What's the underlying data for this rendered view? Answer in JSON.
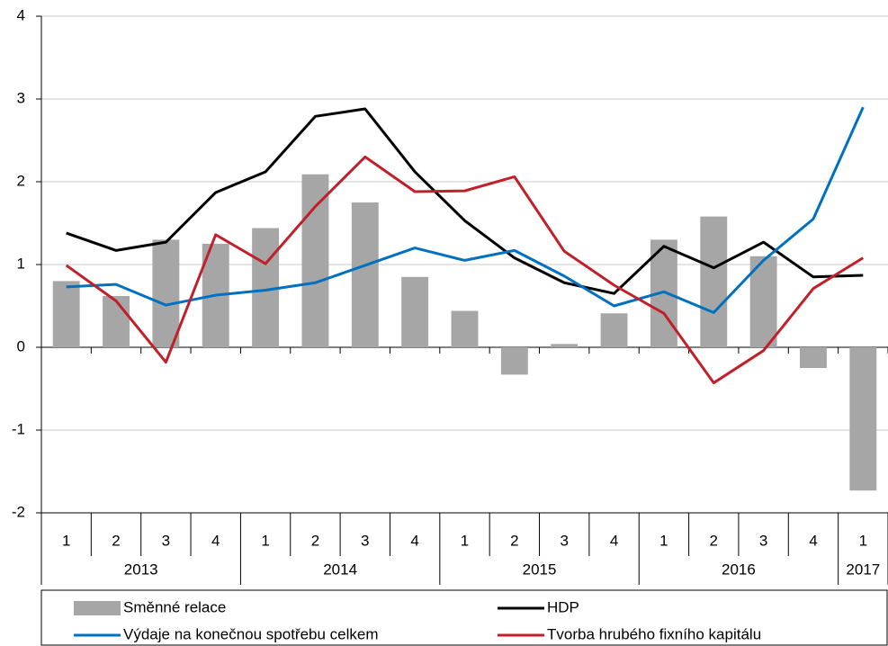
{
  "chart_data": {
    "type": "bar",
    "categories": [
      "1",
      "2",
      "3",
      "4",
      "1",
      "2",
      "3",
      "4",
      "1",
      "2",
      "3",
      "4",
      "1",
      "2",
      "3",
      "4",
      "1"
    ],
    "groups": [
      "2013",
      null,
      null,
      null,
      "2014",
      null,
      null,
      null,
      "2015",
      null,
      null,
      null,
      "2016",
      null,
      null,
      null,
      "2017"
    ],
    "series": [
      {
        "name": "Směnné relace",
        "type": "bar",
        "color": "#a6a6a6",
        "values": [
          0.8,
          0.62,
          1.3,
          1.25,
          1.44,
          2.09,
          1.75,
          0.85,
          0.44,
          -0.33,
          0.04,
          0.41,
          1.3,
          1.58,
          1.1,
          -0.25,
          -1.73
        ]
      },
      {
        "name": "HDP",
        "type": "line",
        "color": "#000000",
        "values": [
          1.38,
          1.17,
          1.27,
          1.87,
          2.12,
          2.79,
          2.88,
          2.12,
          1.53,
          1.08,
          0.78,
          0.65,
          1.22,
          0.96,
          1.27,
          0.85,
          0.87
        ]
      },
      {
        "name": "Výdaje na konečnou spotřebu celkem",
        "type": "line",
        "color": "#0070c0",
        "values": [
          0.73,
          0.76,
          0.51,
          0.63,
          0.69,
          0.78,
          0.99,
          1.2,
          1.05,
          1.17,
          0.86,
          0.5,
          0.67,
          0.42,
          1.05,
          1.55,
          2.9
        ]
      },
      {
        "name": "Tvorba hrubého fixního kapitálu",
        "type": "line",
        "color": "#c0202a",
        "values": [
          0.99,
          0.56,
          -0.18,
          1.36,
          1.01,
          1.7,
          2.3,
          1.88,
          1.89,
          2.06,
          1.16,
          0.75,
          0.41,
          -0.43,
          -0.04,
          0.71,
          1.08
        ]
      }
    ],
    "ylim": [
      -2,
      4
    ],
    "yticks": [
      -2,
      -1,
      0,
      1,
      2,
      3,
      4
    ],
    "grid": true
  }
}
